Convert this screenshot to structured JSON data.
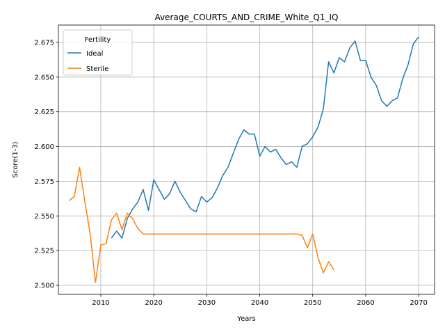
{
  "chart_data": {
    "type": "line",
    "title": "Average_COURTS_AND_CRIME_White_Q1_IQ",
    "xlabel": "Years",
    "ylabel": "Score(1-3)",
    "xlim": [
      2002,
      2073
    ],
    "ylim": [
      2.4935,
      2.6875
    ],
    "xticks": [
      2010,
      2020,
      2030,
      2040,
      2050,
      2060,
      2070
    ],
    "xtick_labels": [
      "2010",
      "2020",
      "2030",
      "2040",
      "2050",
      "2060",
      "2070"
    ],
    "yticks": [
      2.5,
      2.525,
      2.55,
      2.575,
      2.6,
      2.625,
      2.65,
      2.675
    ],
    "ytick_labels": [
      "2.500",
      "2.525",
      "2.550",
      "2.575",
      "2.600",
      "2.625",
      "2.650",
      "2.675"
    ],
    "grid": true,
    "legend": {
      "title": "Fertility",
      "position": "top-left"
    },
    "series": [
      {
        "name": "Ideal",
        "color": "#1f77b4",
        "x": [
          2012,
          2013,
          2014,
          2015,
          2016,
          2017,
          2018,
          2019,
          2020,
          2021,
          2022,
          2023,
          2024,
          2025,
          2026,
          2027,
          2028,
          2029,
          2030,
          2031,
          2032,
          2033,
          2034,
          2035,
          2036,
          2037,
          2038,
          2039,
          2040,
          2041,
          2042,
          2043,
          2044,
          2045,
          2046,
          2047,
          2048,
          2049,
          2050,
          2051,
          2052,
          2053,
          2054,
          2055,
          2056,
          2057,
          2058,
          2059,
          2060,
          2061,
          2062,
          2063,
          2064,
          2065,
          2066,
          2067,
          2068,
          2069,
          2070
        ],
        "y": [
          2.534,
          2.539,
          2.534,
          2.548,
          2.555,
          2.56,
          2.569,
          2.554,
          2.576,
          2.569,
          2.562,
          2.566,
          2.575,
          2.567,
          2.561,
          2.555,
          2.553,
          2.564,
          2.56,
          2.563,
          2.57,
          2.579,
          2.585,
          2.595,
          2.605,
          2.612,
          2.609,
          2.609,
          2.593,
          2.6,
          2.596,
          2.598,
          2.592,
          2.587,
          2.589,
          2.585,
          2.6,
          2.602,
          2.607,
          2.614,
          2.627,
          2.661,
          2.653,
          2.664,
          2.661,
          2.671,
          2.676,
          2.662,
          2.662,
          2.65,
          2.644,
          2.633,
          2.629,
          2.633,
          2.635,
          2.649,
          2.659,
          2.674,
          2.679
        ]
      },
      {
        "name": "Sterile",
        "color": "#ff7f0e",
        "x": [
          2004,
          2005,
          2006,
          2007,
          2008,
          2009,
          2010,
          2011,
          2012,
          2013,
          2014,
          2015,
          2016,
          2017,
          2018,
          2019,
          2020,
          2025,
          2030,
          2035,
          2040,
          2045,
          2047,
          2048,
          2049,
          2050,
          2051,
          2052,
          2053,
          2054
        ],
        "y": [
          2.561,
          2.564,
          2.585,
          2.56,
          2.537,
          2.502,
          2.529,
          2.53,
          2.547,
          2.552,
          2.54,
          2.552,
          2.548,
          2.541,
          2.537,
          2.537,
          2.537,
          2.537,
          2.537,
          2.537,
          2.537,
          2.537,
          2.537,
          2.536,
          2.527,
          2.537,
          2.52,
          2.509,
          2.517,
          2.511
        ]
      }
    ]
  }
}
